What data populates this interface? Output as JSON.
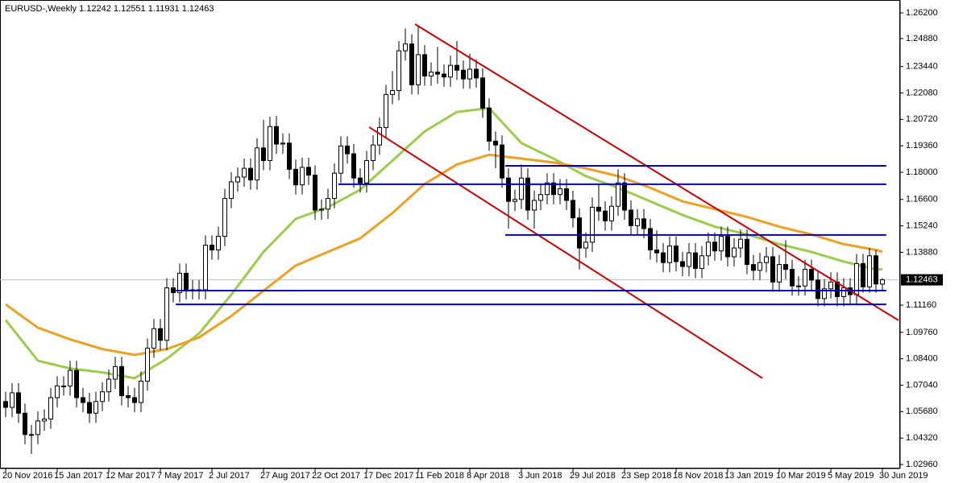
{
  "chart_data": {
    "type": "candlestick",
    "title": "EURUSD-,Weekly  1.12242 1.12551 1.11931 1.12463",
    "categories": [
      "20 Nov 2016",
      null,
      null,
      null,
      null,
      null,
      null,
      null,
      "15 Jan 2017",
      null,
      null,
      null,
      null,
      null,
      null,
      null,
      "12 Mar 2017",
      null,
      null,
      null,
      null,
      null,
      null,
      null,
      "7 May 2017",
      null,
      null,
      null,
      null,
      null,
      null,
      null,
      "2 Jul 2017",
      null,
      null,
      null,
      null,
      null,
      null,
      null,
      "27 Aug 2017",
      null,
      null,
      null,
      null,
      null,
      null,
      null,
      "22 Oct 2017",
      null,
      null,
      null,
      null,
      null,
      null,
      null,
      "17 Dec 2017",
      null,
      null,
      null,
      null,
      null,
      null,
      null,
      "11 Feb 2018",
      null,
      null,
      null,
      null,
      null,
      null,
      null,
      "8 Apr 2018",
      null,
      null,
      null,
      null,
      null,
      null,
      null,
      "3 Jun 2018",
      null,
      null,
      null,
      null,
      null,
      null,
      null,
      "29 Jul 2018",
      null,
      null,
      null,
      null,
      null,
      null,
      null,
      "23 Sep 2018",
      null,
      null,
      null,
      null,
      null,
      null,
      null,
      "18 Nov 2018",
      null,
      null,
      null,
      null,
      null,
      null,
      null,
      "13 Jan 2019",
      null,
      null,
      null,
      null,
      null,
      null,
      null,
      "10 Mar 2019",
      null,
      null,
      null,
      null,
      null,
      null,
      null,
      "5 May 2019",
      null,
      null,
      null,
      null,
      null,
      null,
      null,
      "30 Jun 2019"
    ],
    "open": [
      1.062,
      1.059,
      1.0665,
      1.056,
      1.045,
      1.045,
      1.052,
      1.053,
      1.064,
      1.07,
      1.07,
      1.078,
      1.064,
      1.0615,
      1.056,
      1.062,
      1.067,
      1.0735,
      1.08,
      1.065,
      1.064,
      1.0615,
      1.0725,
      1.0895,
      1.0995,
      1.0935,
      1.1205,
      1.118,
      1.128,
      1.1195,
      1.1195,
      1.1195,
      1.1425,
      1.14,
      1.147,
      1.1665,
      1.175,
      1.1775,
      1.182,
      1.176,
      1.1925,
      1.186,
      1.2035,
      1.1945,
      1.195,
      1.1815,
      1.1735,
      1.1825,
      1.1785,
      1.1605,
      1.161,
      1.1665,
      1.1795,
      1.1935,
      1.1895,
      1.177,
      1.1745,
      1.186,
      1.194,
      1.203,
      1.22,
      1.222,
      1.2425,
      1.246,
      1.225,
      1.2405,
      1.2295,
      1.2315,
      1.2305,
      1.229,
      1.235,
      1.2325,
      1.228,
      1.233,
      1.2285,
      1.213,
      1.196,
      1.194,
      1.177,
      1.165,
      1.166,
      1.177,
      1.1605,
      1.1655,
      1.1685,
      1.1745,
      1.1685,
      1.1715,
      1.1655,
      1.1565,
      1.141,
      1.144,
      1.162,
      1.16,
      1.155,
      1.1625,
      1.1745,
      1.1605,
      1.1525,
      1.156,
      1.151,
      1.14,
      1.1385,
      1.1335,
      1.142,
      1.134,
      1.1315,
      1.1385,
      1.1305,
      1.137,
      1.144,
      1.1395,
      1.147,
      1.1365,
      1.141,
      1.1455,
      1.1325,
      1.1295,
      1.1335,
      1.1365,
      1.1235,
      1.1325,
      1.13,
      1.1215,
      1.1215,
      1.13,
      1.1245,
      1.115,
      1.12,
      1.1235,
      1.116,
      1.1205,
      1.117,
      1.133,
      1.121,
      1.137,
      1.12242
    ],
    "high": [
      1.067,
      1.0715,
      1.0715,
      1.061,
      1.05,
      1.057,
      1.058,
      1.069,
      1.075,
      1.075,
      1.083,
      1.083,
      1.069,
      1.0665,
      1.067,
      1.072,
      1.0785,
      1.085,
      1.085,
      1.07,
      1.069,
      1.0775,
      1.0945,
      1.1045,
      1.1045,
      1.1255,
      1.1255,
      1.133,
      1.133,
      1.1245,
      1.1245,
      1.1475,
      1.1475,
      1.152,
      1.1715,
      1.18,
      1.1825,
      1.187,
      1.187,
      1.1975,
      1.207,
      1.2085,
      1.209,
      1.2,
      1.2,
      1.1865,
      1.1875,
      1.1875,
      1.1835,
      1.166,
      1.1715,
      1.1845,
      1.1985,
      1.1985,
      1.1945,
      1.182,
      1.191,
      1.199,
      1.208,
      1.225,
      1.232,
      1.2475,
      1.254,
      1.251,
      1.2555,
      1.2455,
      1.2365,
      1.2445,
      1.2355,
      1.24,
      1.2475,
      1.2375,
      1.241,
      1.238,
      1.2335,
      1.218,
      1.201,
      1.199,
      1.182,
      1.171,
      1.184,
      1.182,
      1.1705,
      1.1735,
      1.1795,
      1.1795,
      1.1765,
      1.1765,
      1.1705,
      1.1615,
      1.149,
      1.167,
      1.1735,
      1.165,
      1.1675,
      1.1815,
      1.1795,
      1.1655,
      1.161,
      1.161,
      1.156,
      1.15,
      1.1435,
      1.147,
      1.147,
      1.139,
      1.1435,
      1.1435,
      1.142,
      1.149,
      1.149,
      1.152,
      1.152,
      1.146,
      1.1505,
      1.1505,
      1.1375,
      1.1385,
      1.1415,
      1.1415,
      1.1375,
      1.145,
      1.135,
      1.1265,
      1.135,
      1.135,
      1.1295,
      1.125,
      1.1285,
      1.1285,
      1.1255,
      1.1255,
      1.138,
      1.138,
      1.141,
      1.14,
      1.12551
    ],
    "low": [
      1.054,
      1.054,
      1.051,
      1.04,
      1.035,
      1.04,
      1.047,
      1.048,
      1.059,
      1.065,
      1.065,
      1.059,
      1.0565,
      1.051,
      1.051,
      1.057,
      1.062,
      1.0685,
      1.06,
      1.059,
      1.0565,
      1.0565,
      1.0675,
      1.0845,
      1.0885,
      1.0885,
      1.113,
      1.113,
      1.1145,
      1.1145,
      1.1145,
      1.1145,
      1.135,
      1.135,
      1.142,
      1.1615,
      1.17,
      1.1725,
      1.171,
      1.171,
      1.181,
      1.181,
      1.1895,
      1.1895,
      1.1765,
      1.1685,
      1.1685,
      1.1735,
      1.1555,
      1.1555,
      1.156,
      1.1615,
      1.1745,
      1.1845,
      1.172,
      1.1695,
      1.1695,
      1.181,
      1.189,
      1.198,
      1.215,
      1.217,
      1.2375,
      1.22,
      1.22,
      1.2245,
      1.2245,
      1.2255,
      1.224,
      1.224,
      1.2275,
      1.223,
      1.223,
      1.2235,
      1.208,
      1.191,
      1.182,
      1.172,
      1.151,
      1.16,
      1.161,
      1.1555,
      1.151,
      1.1605,
      1.1635,
      1.1635,
      1.1635,
      1.1605,
      1.1515,
      1.13,
      1.136,
      1.139,
      1.155,
      1.15,
      1.15,
      1.1575,
      1.1555,
      1.1475,
      1.1475,
      1.146,
      1.135,
      1.1335,
      1.1285,
      1.1285,
      1.129,
      1.1265,
      1.1265,
      1.1255,
      1.1255,
      1.132,
      1.1345,
      1.1345,
      1.1315,
      1.1315,
      1.136,
      1.1275,
      1.1245,
      1.1245,
      1.1285,
      1.1185,
      1.1185,
      1.125,
      1.1165,
      1.1165,
      1.1165,
      1.1195,
      1.111,
      1.111,
      1.115,
      1.111,
      1.111,
      1.112,
      1.112,
      1.118,
      1.118,
      1.118,
      1.11931
    ],
    "close": [
      1.059,
      1.0665,
      1.056,
      1.045,
      1.045,
      1.052,
      1.053,
      1.064,
      1.07,
      1.07,
      1.078,
      1.064,
      1.0615,
      1.056,
      1.062,
      1.067,
      1.0735,
      1.08,
      1.065,
      1.064,
      1.0615,
      1.0725,
      1.0895,
      1.0995,
      1.0935,
      1.1205,
      1.118,
      1.128,
      1.1195,
      1.1195,
      1.1195,
      1.1425,
      1.14,
      1.147,
      1.1665,
      1.175,
      1.1775,
      1.182,
      1.176,
      1.1925,
      1.186,
      1.2035,
      1.1945,
      1.195,
      1.1815,
      1.1735,
      1.1825,
      1.1785,
      1.1605,
      1.161,
      1.1665,
      1.1795,
      1.1935,
      1.1895,
      1.177,
      1.1745,
      1.186,
      1.194,
      1.203,
      1.22,
      1.222,
      1.2425,
      1.246,
      1.225,
      1.2405,
      1.2295,
      1.2315,
      1.2305,
      1.229,
      1.235,
      1.2325,
      1.228,
      1.233,
      1.2285,
      1.213,
      1.196,
      1.194,
      1.177,
      1.165,
      1.166,
      1.177,
      1.1605,
      1.1655,
      1.1685,
      1.1745,
      1.1685,
      1.1715,
      1.1655,
      1.1565,
      1.141,
      1.144,
      1.162,
      1.16,
      1.155,
      1.1625,
      1.1745,
      1.1605,
      1.1525,
      1.156,
      1.151,
      1.14,
      1.1385,
      1.1335,
      1.142,
      1.134,
      1.1315,
      1.1385,
      1.1305,
      1.137,
      1.144,
      1.1395,
      1.147,
      1.1365,
      1.141,
      1.1455,
      1.1325,
      1.1295,
      1.1335,
      1.1365,
      1.1235,
      1.1325,
      1.13,
      1.1215,
      1.1215,
      1.13,
      1.1245,
      1.115,
      1.12,
      1.1235,
      1.116,
      1.1205,
      1.117,
      1.133,
      1.121,
      1.137,
      1.1225,
      1.12463
    ],
    "moving_averages": [
      {
        "color": "#9acd4a",
        "x": [
          0,
          5,
          10,
          15,
          20,
          25,
          30,
          35,
          40,
          45,
          50,
          55,
          60,
          65,
          70,
          75,
          80,
          85,
          90,
          95,
          100,
          105,
          110,
          115,
          120,
          125,
          130,
          135,
          136
        ],
        "values": [
          1.104,
          1.083,
          1.079,
          1.077,
          1.074,
          1.084,
          1.097,
          1.117,
          1.139,
          1.156,
          1.162,
          1.171,
          1.186,
          1.201,
          1.211,
          1.213,
          1.195,
          1.187,
          1.178,
          1.172,
          1.165,
          1.158,
          1.152,
          1.148,
          1.143,
          1.139,
          1.134,
          1.13,
          1.13
        ]
      },
      {
        "color": "#f0a020",
        "x": [
          0,
          5,
          10,
          15,
          20,
          25,
          30,
          35,
          40,
          45,
          50,
          55,
          60,
          65,
          70,
          75,
          80,
          85,
          90,
          95,
          100,
          105,
          110,
          115,
          120,
          125,
          130,
          135,
          136
        ],
        "values": [
          1.112,
          1.1,
          1.094,
          1.089,
          1.086,
          1.089,
          1.095,
          1.106,
          1.119,
          1.132,
          1.139,
          1.146,
          1.159,
          1.174,
          1.184,
          1.189,
          1.187,
          1.185,
          1.182,
          1.178,
          1.172,
          1.165,
          1.161,
          1.157,
          1.152,
          1.148,
          1.143,
          1.14,
          1.139
        ]
      }
    ],
    "lines": [
      {
        "color": "#cc0000",
        "x": [
          63.5,
          138.5
        ],
        "values": [
          1.2562,
          1.1038
        ]
      },
      {
        "color": "#cc0000",
        "x": [
          56.4,
          117.4
        ],
        "values": [
          1.2032,
          1.074
        ]
      },
      {
        "color": "#0000cc",
        "x": [
          77.5,
          136.6
        ],
        "values": [
          1.1833,
          1.1833
        ]
      },
      {
        "color": "#0000cc",
        "x": [
          51.6,
          136.6
        ],
        "values": [
          1.1738,
          1.1738
        ]
      },
      {
        "color": "#0000cc",
        "x": [
          77.5,
          136.6
        ],
        "values": [
          1.1477,
          1.1477
        ]
      },
      {
        "color": "#0000cc",
        "x": [
          26.4,
          136.6
        ],
        "values": [
          1.1191,
          1.1191
        ]
      },
      {
        "color": "#0000cc",
        "x": [
          26.4,
          136.6
        ],
        "values": [
          1.112,
          1.112
        ]
      }
    ],
    "last_price": {
      "value": 1.12463,
      "label": "1.12463"
    },
    "ylim": [
      1.0296,
      1.262
    ],
    "yticks": [
      {
        "value": 1.262,
        "label": "1.26200"
      },
      {
        "value": 1.2488,
        "label": "1.24880"
      },
      {
        "value": 1.2344,
        "label": "1.23440"
      },
      {
        "value": 1.2208,
        "label": "1.22080"
      },
      {
        "value": 1.2072,
        "label": "1.20720"
      },
      {
        "value": 1.1936,
        "label": "1.19360"
      },
      {
        "value": 1.18,
        "label": "1.18000"
      },
      {
        "value": 1.166,
        "label": "1.16600"
      },
      {
        "value": 1.1524,
        "label": "1.15240"
      },
      {
        "value": 1.1388,
        "label": "1.13880"
      },
      {
        "value": 1.1116,
        "label": "1.11160"
      },
      {
        "value": 1.0976,
        "label": "1.09760"
      },
      {
        "value": 1.084,
        "label": "1.08400"
      },
      {
        "value": 1.0704,
        "label": "1.07040"
      },
      {
        "value": 1.0568,
        "label": "1.05680"
      },
      {
        "value": 1.0432,
        "label": "1.04320"
      },
      {
        "value": 1.0296,
        "label": "1.02960"
      }
    ],
    "up_color": "#ffffff",
    "down_color": "#000000",
    "grid": false
  }
}
